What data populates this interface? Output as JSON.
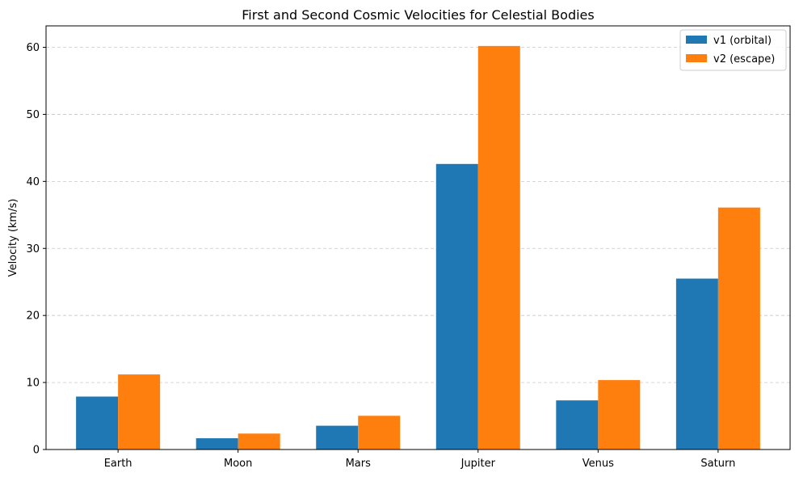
{
  "chart_data": {
    "type": "bar",
    "title": "First and Second Cosmic Velocities for Celestial Bodies",
    "xlabel": "",
    "ylabel": "Velocity (km/s)",
    "categories": [
      "Earth",
      "Moon",
      "Mars",
      "Jupiter",
      "Venus",
      "Saturn"
    ],
    "series": [
      {
        "name": "v1 (orbital)",
        "color": "#1f77b4",
        "values": [
          7.9,
          1.68,
          3.55,
          42.6,
          7.33,
          25.5
        ]
      },
      {
        "name": "v2 (escape)",
        "color": "#ff7f0e",
        "values": [
          11.2,
          2.38,
          5.03,
          60.2,
          10.36,
          36.1
        ]
      }
    ],
    "ylim": [
      0,
      63.2
    ],
    "yticks": [
      0,
      10,
      20,
      30,
      40,
      50,
      60
    ],
    "grid": "y-dashed",
    "legend": "top-right"
  }
}
